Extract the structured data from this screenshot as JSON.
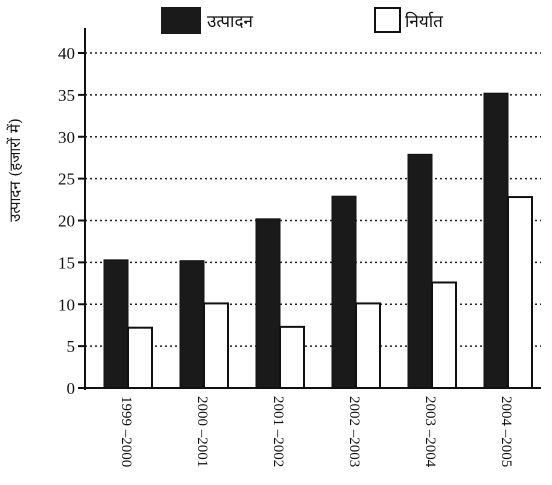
{
  "chart_data": {
    "type": "bar",
    "categories": [
      "1999 –2000",
      "2000 –2001",
      "2001 –2002",
      "2002 –2003",
      "2003 –2004",
      "2004 –2005"
    ],
    "series": [
      {
        "name": "उत्पादन",
        "values": [
          15.3,
          15.2,
          20.2,
          22.9,
          27.9,
          35.2
        ],
        "color": "#1a1a1a"
      },
      {
        "name": "निर्यात",
        "values": [
          7.2,
          10.1,
          7.3,
          10.1,
          12.6,
          22.8
        ],
        "color": "#ffffff"
      }
    ],
    "ylabel": "उत्पादन (हजारों में)",
    "xlabel": "",
    "ylim": [
      0,
      40
    ],
    "yticks": [
      0,
      5,
      10,
      15,
      20,
      25,
      30,
      35,
      40
    ],
    "grid": true,
    "legend_position": "top"
  }
}
